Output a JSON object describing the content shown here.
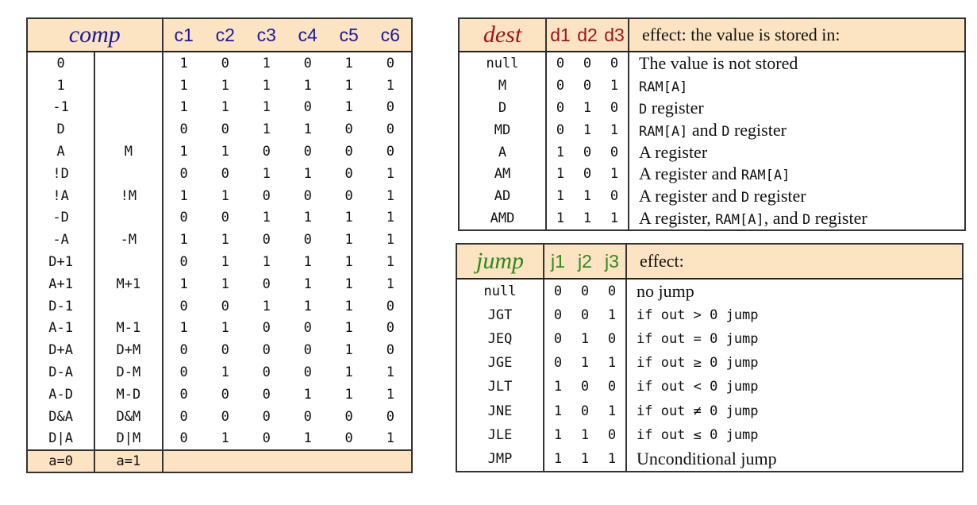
{
  "comp_table": {
    "title": "comp",
    "bit_headers": [
      "c1",
      "c2",
      "c3",
      "c4",
      "c5",
      "c6"
    ],
    "rows": [
      {
        "a0": "0",
        "a1": "",
        "bits": [
          "1",
          "0",
          "1",
          "0",
          "1",
          "0"
        ]
      },
      {
        "a0": "1",
        "a1": "",
        "bits": [
          "1",
          "1",
          "1",
          "1",
          "1",
          "1"
        ]
      },
      {
        "a0": "-1",
        "a1": "",
        "bits": [
          "1",
          "1",
          "1",
          "0",
          "1",
          "0"
        ]
      },
      {
        "a0": "D",
        "a1": "",
        "bits": [
          "0",
          "0",
          "1",
          "1",
          "0",
          "0"
        ]
      },
      {
        "a0": "A",
        "a1": "M",
        "bits": [
          "1",
          "1",
          "0",
          "0",
          "0",
          "0"
        ]
      },
      {
        "a0": "!D",
        "a1": "",
        "bits": [
          "0",
          "0",
          "1",
          "1",
          "0",
          "1"
        ]
      },
      {
        "a0": "!A",
        "a1": "!M",
        "bits": [
          "1",
          "1",
          "0",
          "0",
          "0",
          "1"
        ]
      },
      {
        "a0": "-D",
        "a1": "",
        "bits": [
          "0",
          "0",
          "1",
          "1",
          "1",
          "1"
        ]
      },
      {
        "a0": "-A",
        "a1": "-M",
        "bits": [
          "1",
          "1",
          "0",
          "0",
          "1",
          "1"
        ]
      },
      {
        "a0": "D+1",
        "a1": "",
        "bits": [
          "0",
          "1",
          "1",
          "1",
          "1",
          "1"
        ]
      },
      {
        "a0": "A+1",
        "a1": "M+1",
        "bits": [
          "1",
          "1",
          "0",
          "1",
          "1",
          "1"
        ]
      },
      {
        "a0": "D-1",
        "a1": "",
        "bits": [
          "0",
          "0",
          "1",
          "1",
          "1",
          "0"
        ]
      },
      {
        "a0": "A-1",
        "a1": "M-1",
        "bits": [
          "1",
          "1",
          "0",
          "0",
          "1",
          "0"
        ]
      },
      {
        "a0": "D+A",
        "a1": "D+M",
        "bits": [
          "0",
          "0",
          "0",
          "0",
          "1",
          "0"
        ]
      },
      {
        "a0": "D-A",
        "a1": "D-M",
        "bits": [
          "0",
          "1",
          "0",
          "0",
          "1",
          "1"
        ]
      },
      {
        "a0": "A-D",
        "a1": "M-D",
        "bits": [
          "0",
          "0",
          "0",
          "1",
          "1",
          "1"
        ]
      },
      {
        "a0": "D&A",
        "a1": "D&M",
        "bits": [
          "0",
          "0",
          "0",
          "0",
          "0",
          "0"
        ]
      },
      {
        "a0": "D|A",
        "a1": "D|M",
        "bits": [
          "0",
          "1",
          "0",
          "1",
          "0",
          "1"
        ]
      }
    ],
    "footer": {
      "a0": "a=0",
      "a1": "a=1"
    }
  },
  "dest_table": {
    "title": "dest",
    "bit_headers": [
      "d1",
      "d2",
      "d3"
    ],
    "effect_header": "effect: the value is stored in:",
    "rows": [
      {
        "mnemonic": "null",
        "bits": [
          "0",
          "0",
          "0"
        ],
        "effect": [
          {
            "t": "The value is not stored",
            "m": false
          }
        ]
      },
      {
        "mnemonic": "M",
        "bits": [
          "0",
          "0",
          "1"
        ],
        "effect": [
          {
            "t": "RAM[A]",
            "m": true
          }
        ]
      },
      {
        "mnemonic": "D",
        "bits": [
          "0",
          "1",
          "0"
        ],
        "effect": [
          {
            "t": "D",
            "m": true
          },
          {
            "t": " register",
            "m": false
          }
        ]
      },
      {
        "mnemonic": "MD",
        "bits": [
          "0",
          "1",
          "1"
        ],
        "effect": [
          {
            "t": "RAM[A]",
            "m": true
          },
          {
            "t": " and ",
            "m": false
          },
          {
            "t": "D",
            "m": true
          },
          {
            "t": " register",
            "m": false
          }
        ]
      },
      {
        "mnemonic": "A",
        "bits": [
          "1",
          "0",
          "0"
        ],
        "effect": [
          {
            "t": "A register",
            "m": false
          }
        ]
      },
      {
        "mnemonic": "AM",
        "bits": [
          "1",
          "0",
          "1"
        ],
        "effect": [
          {
            "t": "A register and ",
            "m": false
          },
          {
            "t": "RAM[A]",
            "m": true
          }
        ]
      },
      {
        "mnemonic": "AD",
        "bits": [
          "1",
          "1",
          "0"
        ],
        "effect": [
          {
            "t": "A register and ",
            "m": false
          },
          {
            "t": "D",
            "m": true
          },
          {
            "t": " register",
            "m": false
          }
        ]
      },
      {
        "mnemonic": "AMD",
        "bits": [
          "1",
          "1",
          "1"
        ],
        "effect": [
          {
            "t": "A register, ",
            "m": false
          },
          {
            "t": "RAM[A]",
            "m": true
          },
          {
            "t": ", and ",
            "m": false
          },
          {
            "t": "D",
            "m": true
          },
          {
            "t": " register",
            "m": false
          }
        ]
      }
    ]
  },
  "jump_table": {
    "title": "jump",
    "bit_headers": [
      "j1",
      "j2",
      "j3"
    ],
    "effect_header": "effect:",
    "rows": [
      {
        "mnemonic": "null",
        "bits": [
          "0",
          "0",
          "0"
        ],
        "effect": "no jump",
        "mono": false
      },
      {
        "mnemonic": "JGT",
        "bits": [
          "0",
          "0",
          "1"
        ],
        "effect": "if out > 0 jump",
        "mono": true
      },
      {
        "mnemonic": "JEQ",
        "bits": [
          "0",
          "1",
          "0"
        ],
        "effect": "if out = 0 jump",
        "mono": true
      },
      {
        "mnemonic": "JGE",
        "bits": [
          "0",
          "1",
          "1"
        ],
        "effect": "if out ≥ 0 jump",
        "mono": true
      },
      {
        "mnemonic": "JLT",
        "bits": [
          "1",
          "0",
          "0"
        ],
        "effect": "if out < 0 jump",
        "mono": true
      },
      {
        "mnemonic": "JNE",
        "bits": [
          "1",
          "0",
          "1"
        ],
        "effect": "if out ≠ 0 jump",
        "mono": true
      },
      {
        "mnemonic": "JLE",
        "bits": [
          "1",
          "1",
          "0"
        ],
        "effect": "if out ≤ 0 jump",
        "mono": true
      },
      {
        "mnemonic": "JMP",
        "bits": [
          "1",
          "1",
          "1"
        ],
        "effect": "Unconditional jump",
        "mono": false
      }
    ]
  }
}
